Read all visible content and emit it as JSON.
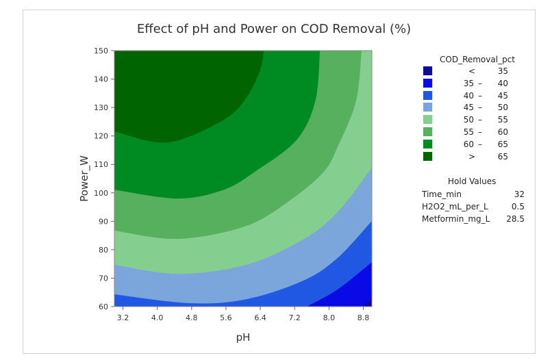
{
  "chart_data": {
    "type": "contour",
    "title": "Effect of pH and Power on COD Removal (%)",
    "xlabel": "pH",
    "ylabel": "Power_W",
    "xlim": [
      3.0,
      9.0
    ],
    "ylim": [
      60,
      150
    ],
    "xticks": [
      "3.2",
      "4.0",
      "4.8",
      "5.6",
      "6.4",
      "7.2",
      "8.0",
      "8.8"
    ],
    "xtick_values": [
      3.2,
      4.0,
      4.8,
      5.6,
      6.4,
      7.2,
      8.0,
      8.8
    ],
    "yticks": [
      "60",
      "70",
      "80",
      "90",
      "100",
      "110",
      "120",
      "130",
      "140",
      "150"
    ],
    "ytick_values": [
      60,
      70,
      80,
      90,
      100,
      110,
      120,
      130,
      140,
      150
    ],
    "legend": {
      "title": "COD_Removal_pct",
      "placement": "right",
      "bands": [
        {
          "sym": "<",
          "lo": "",
          "hi": "35",
          "color": "#0c0c96"
        },
        {
          "sym": "",
          "lo": "35",
          "hi": "40",
          "color": "#0a0ae6"
        },
        {
          "sym": "",
          "lo": "40",
          "hi": "45",
          "color": "#2158e3"
        },
        {
          "sym": "",
          "lo": "45",
          "hi": "50",
          "color": "#7ba6dc"
        },
        {
          "sym": "",
          "lo": "50",
          "hi": "55",
          "color": "#84cf8f"
        },
        {
          "sym": "",
          "lo": "55",
          "hi": "60",
          "color": "#56b05e"
        },
        {
          "sym": "",
          "lo": "60",
          "hi": "65",
          "color": "#008a22"
        },
        {
          "sym": ">",
          "lo": "",
          "hi": "65",
          "color": "#006400"
        }
      ]
    },
    "contours": [
      {
        "level": 35,
        "points": [
          [
            8.79,
            60
          ],
          [
            9.0,
            62.6
          ]
        ]
      },
      {
        "level": 40,
        "points": [
          [
            7.48,
            60
          ],
          [
            8.2,
            66
          ],
          [
            9.0,
            75.6
          ]
        ]
      },
      {
        "level": 45,
        "points": [
          [
            3.0,
            64.3
          ],
          [
            4.76,
            61.2
          ],
          [
            6.08,
            62.6
          ],
          [
            7.4,
            69.1
          ],
          [
            8.2,
            77.1
          ],
          [
            9.0,
            90.1
          ]
        ]
      },
      {
        "level": 50,
        "points": [
          [
            3.0,
            74.7
          ],
          [
            4.48,
            71.5
          ],
          [
            6.08,
            74.7
          ],
          [
            7.4,
            83.6
          ],
          [
            8.2,
            93.2
          ],
          [
            9.0,
            108.8
          ]
        ]
      },
      {
        "level": 55,
        "points": [
          [
            3.0,
            86.7
          ],
          [
            4.48,
            83.8
          ],
          [
            6.08,
            88.4
          ],
          [
            7.15,
            98.0
          ],
          [
            7.89,
            107.6
          ],
          [
            8.2,
            116.1
          ],
          [
            8.63,
            132.2
          ],
          [
            8.76,
            150
          ]
        ]
      },
      {
        "level": 60,
        "points": [
          [
            3.0,
            101.1
          ],
          [
            4.48,
            98.0
          ],
          [
            5.55,
            101.1
          ],
          [
            6.29,
            107.6
          ],
          [
            7.24,
            118.5
          ],
          [
            7.68,
            132.2
          ],
          [
            7.79,
            150
          ]
        ]
      },
      {
        "level": 65,
        "points": [
          [
            3.0,
            121.6
          ],
          [
            4.24,
            117.7
          ],
          [
            5.55,
            125.7
          ],
          [
            6.08,
            133.6
          ],
          [
            6.4,
            143.3
          ],
          [
            6.48,
            150
          ]
        ]
      }
    ]
  },
  "hold_values": {
    "title": "Hold Values",
    "rows": [
      {
        "name": "Time_min",
        "value": "32"
      },
      {
        "name": "H2O2_mL_per_L",
        "value": "0.5"
      },
      {
        "name": "Metformin_mg_L",
        "value": "28.5"
      }
    ]
  }
}
